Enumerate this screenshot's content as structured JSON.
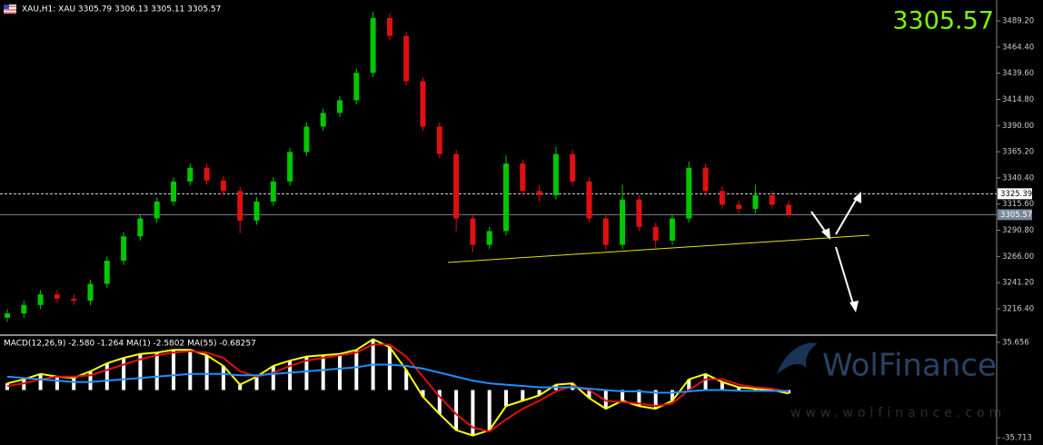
{
  "chart_data": [
    {
      "type": "candlestick",
      "title": "XAU,H1:  XAU  3305.79 3306.13 3305.11 3305.57",
      "bid": 3305.57,
      "ask_line": 3325.39,
      "up_color": "#00c800",
      "down_color": "#e01010",
      "ylim": [
        3192.3,
        3509.0
      ],
      "yticks": [
        {
          "value": 3489.2,
          "label": "3489.20"
        },
        {
          "value": 3464.4,
          "label": "3464.40"
        },
        {
          "value": 3439.6,
          "label": "3439.60"
        },
        {
          "value": 3414.8,
          "label": "3414.80"
        },
        {
          "value": 3390,
          "label": "3390.00"
        },
        {
          "value": 3365.2,
          "label": "3365.20"
        },
        {
          "value": 3340.4,
          "label": "3340.40"
        },
        {
          "value": 3315.6,
          "label": "3315.60"
        },
        {
          "value": 3290.8,
          "label": "3290.80"
        },
        {
          "value": 3266,
          "label": "3266.00"
        },
        {
          "value": 3241.2,
          "label": "3241.20"
        },
        {
          "value": 3216.4,
          "label": "3216.40"
        }
      ],
      "open": [
        3208,
        3212,
        3220,
        3230,
        3226,
        3224,
        3240,
        3262,
        3285,
        3302,
        3318,
        3337,
        3350,
        3338,
        3328,
        3300,
        3318,
        3337,
        3365,
        3389,
        3402,
        3414,
        3440,
        3492,
        3475,
        3432,
        3389,
        3363,
        3302,
        3277,
        3290,
        3354,
        3328,
        3324,
        3363,
        3337,
        3302,
        3277,
        3320,
        3294,
        3281,
        3302,
        3350,
        3328,
        3315,
        3311,
        3324,
        3315
      ],
      "high": [
        3216,
        3224,
        3234,
        3234,
        3230,
        3244,
        3266,
        3289,
        3306,
        3322,
        3341,
        3354,
        3354,
        3342,
        3332,
        3322,
        3341,
        3369,
        3393,
        3406,
        3418,
        3444,
        3498,
        3496,
        3479,
        3436,
        3393,
        3367,
        3306,
        3294,
        3362,
        3358,
        3334,
        3370,
        3367,
        3341,
        3306,
        3334,
        3324,
        3298,
        3306,
        3356,
        3354,
        3332,
        3319,
        3334,
        3328,
        3319
      ],
      "low": [
        3204,
        3208,
        3216,
        3222,
        3220,
        3220,
        3236,
        3258,
        3281,
        3298,
        3314,
        3333,
        3334,
        3324,
        3288,
        3296,
        3314,
        3333,
        3361,
        3385,
        3398,
        3410,
        3436,
        3471,
        3428,
        3385,
        3359,
        3290,
        3270,
        3273,
        3286,
        3324,
        3318,
        3320,
        3333,
        3298,
        3272,
        3273,
        3290,
        3274,
        3277,
        3298,
        3324,
        3311,
        3307,
        3307,
        3311,
        3303
      ],
      "close": [
        3212,
        3220,
        3230,
        3226,
        3224,
        3240,
        3262,
        3285,
        3302,
        3318,
        3337,
        3350,
        3338,
        3328,
        3300,
        3318,
        3337,
        3365,
        3389,
        3402,
        3414,
        3440,
        3492,
        3475,
        3432,
        3389,
        3363,
        3302,
        3277,
        3290,
        3354,
        3328,
        3324,
        3363,
        3337,
        3302,
        3277,
        3320,
        3294,
        3281,
        3302,
        3350,
        3328,
        3315,
        3311,
        3324,
        3315,
        3305.57
      ],
      "watermark": "WolFinance",
      "watermark_url": "www.wolfinance.com"
    },
    {
      "type": "macd",
      "title": "MACD(12,26,9) -2.580 -1.264 MA(1) -2.5802 MA(55) -0.68257",
      "ylim": [
        -41.1,
        39.7
      ],
      "yticks": [
        35.656,
        -35.713
      ],
      "histogram": {
        "color": "#ffffff",
        "values": [
          5,
          8,
          12,
          10,
          9,
          14,
          20,
          24,
          27,
          28,
          30,
          30,
          26,
          18,
          4,
          10,
          18,
          22,
          25,
          26,
          27,
          30,
          38,
          32,
          15,
          -5,
          -18,
          -30,
          -34,
          -30,
          -12,
          -8,
          -4,
          4,
          5,
          -6,
          -14,
          -8,
          -12,
          -14,
          -8,
          8,
          12,
          6,
          2,
          1,
          0,
          -2.58
        ]
      },
      "series": [
        {
          "color": "#ffff00",
          "values": [
            5,
            8,
            12,
            10,
            9,
            14,
            20,
            24,
            27,
            28,
            30,
            30,
            26,
            18,
            4,
            10,
            18,
            22,
            25,
            26,
            27,
            30,
            38,
            32,
            15,
            -5,
            -18,
            -30,
            -34,
            -30,
            -12,
            -8,
            -4,
            4,
            5,
            -6,
            -14,
            -8,
            -12,
            -14,
            -8,
            8,
            12,
            6,
            2,
            1,
            0,
            -2.5802
          ]
        },
        {
          "color": "#e01010",
          "values": [
            3,
            5,
            8,
            10,
            10,
            11,
            15,
            19,
            23,
            26,
            28,
            29,
            28,
            24,
            14,
            10,
            13,
            18,
            22,
            24,
            26,
            28,
            34,
            34,
            25,
            10,
            -5,
            -18,
            -28,
            -31,
            -22,
            -14,
            -8,
            -1,
            3,
            0,
            -8,
            -9,
            -10,
            -12,
            -10,
            0,
            8,
            8,
            4,
            2,
            1,
            -1.264
          ]
        },
        {
          "color": "#1e90ff",
          "values": [
            10,
            9,
            8,
            7,
            6,
            6,
            7,
            8,
            9,
            10,
            11,
            12,
            12,
            12,
            11,
            11,
            12,
            13,
            14,
            15,
            16,
            17,
            19,
            19,
            18,
            16,
            13,
            10,
            7,
            5,
            4,
            3,
            2,
            2,
            2,
            1,
            0,
            -1,
            -1,
            -2,
            -2,
            -1,
            0,
            0,
            -0.5,
            -0.6,
            -0.7,
            -0.68257
          ]
        }
      ]
    }
  ]
}
